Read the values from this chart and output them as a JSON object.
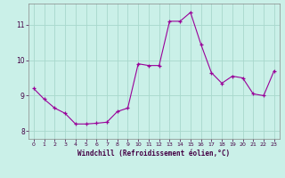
{
  "title": "",
  "xlabel": "Windchill (Refroidissement éolien,°C)",
  "ylabel": "",
  "background_color": "#caf0e8",
  "grid_color": "#a8d8cc",
  "line_color": "#990099",
  "marker_color": "#990099",
  "xlim": [
    -0.5,
    23.5
  ],
  "ylim": [
    7.78,
    11.6
  ],
  "yticks": [
    8,
    9,
    10,
    11
  ],
  "xticks": [
    0,
    1,
    2,
    3,
    4,
    5,
    6,
    7,
    8,
    9,
    10,
    11,
    12,
    13,
    14,
    15,
    16,
    17,
    18,
    19,
    20,
    21,
    22,
    23
  ],
  "x": [
    0,
    1,
    2,
    3,
    4,
    5,
    6,
    7,
    8,
    9,
    10,
    11,
    12,
    13,
    14,
    15,
    16,
    17,
    18,
    19,
    20,
    21,
    22,
    23
  ],
  "y": [
    9.2,
    8.9,
    8.65,
    8.5,
    8.2,
    8.2,
    8.22,
    8.25,
    8.55,
    8.65,
    9.9,
    9.85,
    9.85,
    11.1,
    11.1,
    11.35,
    10.45,
    9.65,
    9.35,
    9.55,
    9.5,
    9.05,
    9.0,
    9.7
  ]
}
